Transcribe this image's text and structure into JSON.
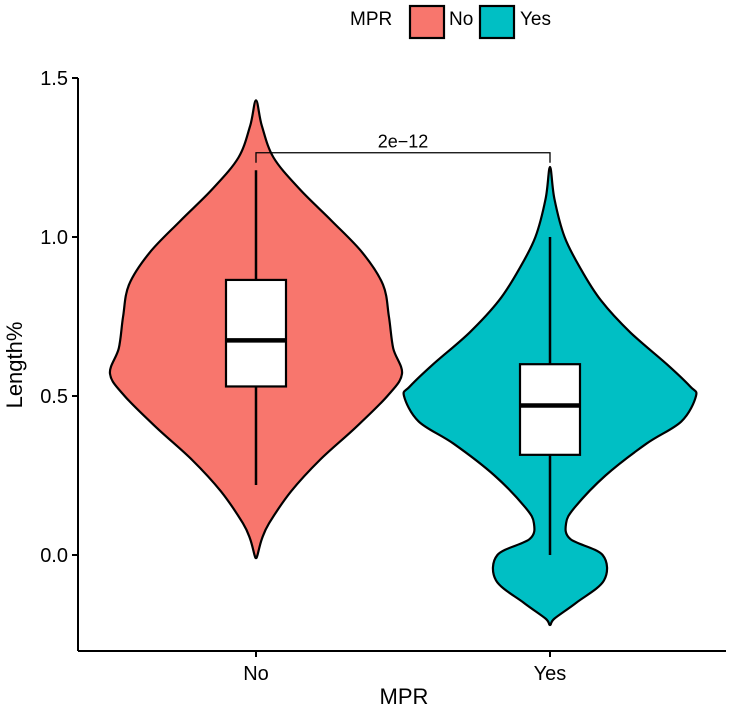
{
  "chart_data": {
    "type": "violin",
    "title": "",
    "xlabel": "MPR",
    "ylabel": "Length%",
    "ylim": [
      -0.3,
      1.5
    ],
    "y_ticks": [
      0.0,
      0.5,
      1.0,
      1.5
    ],
    "y_tick_labels": [
      "0.0",
      "0.5",
      "1.0",
      "1.5"
    ],
    "categories": [
      "No",
      "Yes"
    ],
    "legend": {
      "title": "MPR",
      "position": "top",
      "entries": [
        "No",
        "Yes"
      ]
    },
    "series": [
      {
        "name": "No",
        "color": "#F8766D",
        "violin_profile": [
          [
            1.43,
            0.0
          ],
          [
            1.35,
            0.04
          ],
          [
            1.25,
            0.12
          ],
          [
            1.15,
            0.3
          ],
          [
            1.05,
            0.52
          ],
          [
            0.95,
            0.73
          ],
          [
            0.85,
            0.87
          ],
          [
            0.75,
            0.91
          ],
          [
            0.65,
            0.94
          ],
          [
            0.57,
            1.0
          ],
          [
            0.5,
            0.9
          ],
          [
            0.4,
            0.68
          ],
          [
            0.3,
            0.44
          ],
          [
            0.2,
            0.24
          ],
          [
            0.1,
            0.09
          ],
          [
            0.05,
            0.04
          ],
          [
            0.0,
            0.01
          ],
          [
            -0.01,
            0.0
          ]
        ],
        "box": {
          "whisker_low": 0.22,
          "q1": 0.53,
          "median": 0.675,
          "q3": 0.865,
          "whisker_high": 1.21
        }
      },
      {
        "name": "Yes",
        "color": "#00BFC4",
        "violin_profile": [
          [
            1.22,
            0.0
          ],
          [
            1.12,
            0.03
          ],
          [
            1.0,
            0.1
          ],
          [
            0.9,
            0.21
          ],
          [
            0.8,
            0.35
          ],
          [
            0.7,
            0.55
          ],
          [
            0.6,
            0.8
          ],
          [
            0.53,
            0.96
          ],
          [
            0.5,
            1.0
          ],
          [
            0.42,
            0.9
          ],
          [
            0.35,
            0.66
          ],
          [
            0.25,
            0.38
          ],
          [
            0.15,
            0.17
          ],
          [
            0.1,
            0.11
          ],
          [
            0.05,
            0.14
          ],
          [
            0.0,
            0.36
          ],
          [
            -0.08,
            0.37
          ],
          [
            -0.15,
            0.18
          ],
          [
            -0.2,
            0.03
          ],
          [
            -0.22,
            0.0
          ]
        ],
        "box": {
          "whisker_low": 0.0,
          "q1": 0.315,
          "median": 0.47,
          "q3": 0.6,
          "whisker_high": 1.0
        }
      }
    ],
    "annotations": [
      {
        "type": "significance_bracket",
        "from": "No",
        "to": "Yes",
        "y": 1.265,
        "label": "2e−12"
      }
    ]
  }
}
